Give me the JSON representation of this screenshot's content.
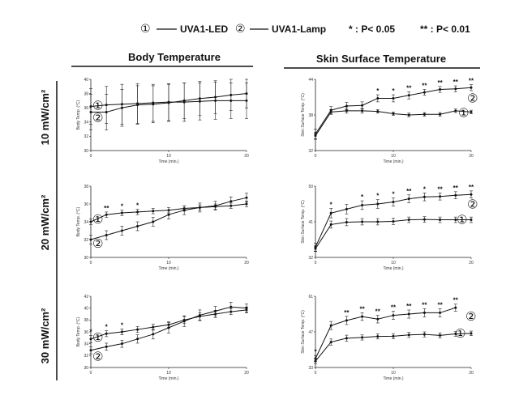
{
  "legend": {
    "led_marker": "①",
    "led_label": "UVA1-LED",
    "lamp_marker": "②",
    "lamp_label": "UVA1-Lamp",
    "sig1": "* : P< 0.05",
    "sig2": "** : P< 0.01"
  },
  "columns": [
    "Body Temperature",
    "Skin Surface  Temperature"
  ],
  "rows": [
    "10 mW/cm²",
    "20 mW/cm²",
    "30 mW/cm²"
  ],
  "chart_data": [
    {
      "type": "line",
      "id": "body-10",
      "xlabel": "Time (min.)",
      "ylabel": "Body Temp. (°C)",
      "xlim": [
        0,
        20
      ],
      "xticks": [
        0,
        10,
        20
      ],
      "ylim": [
        30,
        40
      ],
      "yticks": [
        30,
        32,
        34,
        36,
        38,
        40
      ],
      "x": [
        0,
        2,
        4,
        6,
        8,
        10,
        12,
        14,
        16,
        18,
        20
      ],
      "series": [
        {
          "name": "①",
          "values": [
            36.2,
            36.4,
            36.5,
            36.6,
            36.7,
            36.8,
            36.8,
            36.9,
            37.0,
            37.0,
            37.0
          ],
          "err": [
            2.5,
            2.6,
            2.8,
            2.8,
            2.6,
            2.6,
            2.7,
            2.6,
            2.6,
            2.5,
            2.5
          ],
          "stars": []
        },
        {
          "name": "②",
          "values": [
            35.4,
            35.4,
            36.0,
            36.4,
            36.5,
            36.7,
            37.0,
            37.3,
            37.5,
            37.8,
            38.0
          ],
          "err": [
            2.5,
            2.5,
            2.6,
            2.7,
            2.6,
            2.6,
            2.5,
            2.4,
            2.3,
            2.2,
            2.0
          ],
          "stars": []
        }
      ]
    },
    {
      "type": "line",
      "id": "skin-10",
      "xlabel": "Time (min.)",
      "ylabel": "Skin Surface Temp. (°C)",
      "xlim": [
        0,
        20
      ],
      "xticks": [
        0,
        10,
        20
      ],
      "ylim": [
        32,
        44
      ],
      "yticks": [
        32,
        38,
        44
      ],
      "x": [
        0,
        2,
        4,
        6,
        8,
        10,
        12,
        14,
        16,
        18,
        20
      ],
      "series": [
        {
          "name": "①",
          "values": [
            34.5,
            38.5,
            38.7,
            38.7,
            38.6,
            38.2,
            38.0,
            38.1,
            38.1,
            38.7,
            38.5
          ],
          "err": [
            0.6,
            0.4,
            0.4,
            0.4,
            0.3,
            0.3,
            0.3,
            0.3,
            0.3,
            0.3,
            0.3
          ],
          "stars": []
        },
        {
          "name": "②",
          "values": [
            34.8,
            38.8,
            39.5,
            39.6,
            40.8,
            40.8,
            41.3,
            41.8,
            42.3,
            42.4,
            42.6
          ],
          "err": [
            0.8,
            0.6,
            0.6,
            0.6,
            0.6,
            0.6,
            0.6,
            0.5,
            0.5,
            0.5,
            0.5
          ],
          "stars": [
            "",
            "",
            "",
            "",
            "*",
            "*",
            "**",
            "**",
            "**",
            "**",
            "**"
          ]
        }
      ]
    },
    {
      "type": "line",
      "id": "body-20",
      "xlabel": "Time (min.)",
      "ylabel": "Body Temp. (°C)",
      "xlim": [
        0,
        20
      ],
      "xticks": [
        0,
        10,
        20
      ],
      "ylim": [
        30,
        38
      ],
      "yticks": [
        30,
        32,
        34,
        36,
        38
      ],
      "x": [
        0,
        2,
        4,
        6,
        8,
        10,
        12,
        14,
        16,
        18,
        20
      ],
      "series": [
        {
          "name": "①",
          "values": [
            34.0,
            34.8,
            35.0,
            35.1,
            35.2,
            35.3,
            35.5,
            35.6,
            35.7,
            35.8,
            36.0
          ],
          "err": [
            0.3,
            0.3,
            0.3,
            0.3,
            0.3,
            0.3,
            0.3,
            0.3,
            0.3,
            0.3,
            0.3
          ],
          "stars": [
            "",
            "**",
            "*",
            "*",
            "",
            "",
            "",
            "",
            "",
            "",
            ""
          ]
        },
        {
          "name": "②",
          "values": [
            32.0,
            32.5,
            33.0,
            33.5,
            34.0,
            34.8,
            35.3,
            35.6,
            35.8,
            36.3,
            36.7
          ],
          "err": [
            0.5,
            0.5,
            0.5,
            0.5,
            0.5,
            0.5,
            0.5,
            0.5,
            0.5,
            0.5,
            0.5
          ],
          "stars": []
        }
      ]
    },
    {
      "type": "line",
      "id": "skin-20",
      "xlabel": "Time (min.)",
      "ylabel": "Skin Surface Temp. (°C)",
      "xlim": [
        0,
        20
      ],
      "xticks": [
        0,
        10,
        20
      ],
      "ylim": [
        32,
        50
      ],
      "yticks": [
        32,
        41,
        50
      ],
      "x": [
        0,
        2,
        4,
        6,
        8,
        10,
        12,
        14,
        16,
        18,
        20
      ],
      "series": [
        {
          "name": "①",
          "values": [
            34.2,
            40.3,
            40.9,
            41.0,
            41.0,
            41.1,
            41.5,
            41.6,
            41.5,
            41.5,
            41.5
          ],
          "err": [
            0.7,
            0.9,
            0.9,
            0.8,
            0.8,
            0.8,
            0.7,
            0.7,
            0.7,
            0.7,
            0.7
          ],
          "stars": []
        },
        {
          "name": "②",
          "values": [
            34.6,
            43.2,
            44.2,
            45.2,
            45.5,
            46.0,
            46.8,
            47.3,
            47.4,
            47.7,
            47.9
          ],
          "err": [
            1.0,
            1.2,
            1.2,
            1.1,
            1.1,
            1.0,
            1.0,
            1.0,
            0.9,
            0.9,
            0.9
          ],
          "stars": [
            "",
            "*",
            "",
            "*",
            "*",
            "*",
            "**",
            "*",
            "**",
            "**",
            "**"
          ]
        }
      ]
    },
    {
      "type": "line",
      "id": "body-30",
      "xlabel": "Time (min.)",
      "ylabel": "Body Temp. (°C)",
      "xlim": [
        0,
        20
      ],
      "xticks": [
        0,
        10,
        20
      ],
      "ylim": [
        30,
        42
      ],
      "yticks": [
        30,
        32,
        34,
        36,
        38,
        40,
        42
      ],
      "x": [
        0,
        2,
        4,
        6,
        8,
        10,
        12,
        14,
        16,
        18,
        20
      ],
      "series": [
        {
          "name": "①",
          "values": [
            34.8,
            35.7,
            36.0,
            36.4,
            36.8,
            37.2,
            38.0,
            38.6,
            39.0,
            39.4,
            39.7
          ],
          "err": [
            0.6,
            0.5,
            0.5,
            0.5,
            0.5,
            0.5,
            0.6,
            0.6,
            0.6,
            0.5,
            0.5
          ],
          "stars": [
            "*",
            "*",
            "*",
            "",
            "",
            "",
            "",
            "",
            "",
            "",
            ""
          ]
        },
        {
          "name": "②",
          "values": [
            32.9,
            33.5,
            34.0,
            34.8,
            35.6,
            36.7,
            37.8,
            38.8,
            39.5,
            40.2,
            40.0
          ],
          "err": [
            0.6,
            0.6,
            0.6,
            0.7,
            0.8,
            0.9,
            0.9,
            0.9,
            0.8,
            0.8,
            0.7
          ],
          "stars": []
        }
      ]
    },
    {
      "type": "line",
      "id": "skin-30",
      "xlabel": "Time (min.)",
      "ylabel": "Skin Surface Temp. (°C)",
      "xlim": [
        0,
        20
      ],
      "xticks": [
        0,
        10,
        20
      ],
      "ylim": [
        33,
        61
      ],
      "yticks": [
        33,
        47,
        61
      ],
      "x": [
        0,
        2,
        4,
        6,
        8,
        10,
        12,
        14,
        16,
        18,
        20
      ],
      "series": [
        {
          "name": "①",
          "values": [
            35.5,
            43.0,
            44.5,
            44.8,
            45.2,
            45.3,
            45.8,
            46.0,
            45.6,
            46.2,
            46.4
          ],
          "err": [
            1.0,
            1.2,
            1.2,
            1.0,
            1.0,
            1.0,
            1.0,
            1.0,
            1.0,
            0.9,
            0.9
          ],
          "stars": []
        },
        {
          "name": "②",
          "values": [
            36.5,
            49.5,
            51.5,
            53.0,
            52.0,
            53.5,
            54.0,
            54.5,
            54.5,
            56.5,
            null
          ],
          "err": [
            1.2,
            1.6,
            1.6,
            1.5,
            1.5,
            1.6,
            1.6,
            1.6,
            1.6,
            1.4,
            null
          ],
          "stars": [
            "*",
            "",
            "**",
            "**",
            "**",
            "**",
            "**",
            "**",
            "**",
            "**",
            ""
          ]
        }
      ]
    }
  ]
}
